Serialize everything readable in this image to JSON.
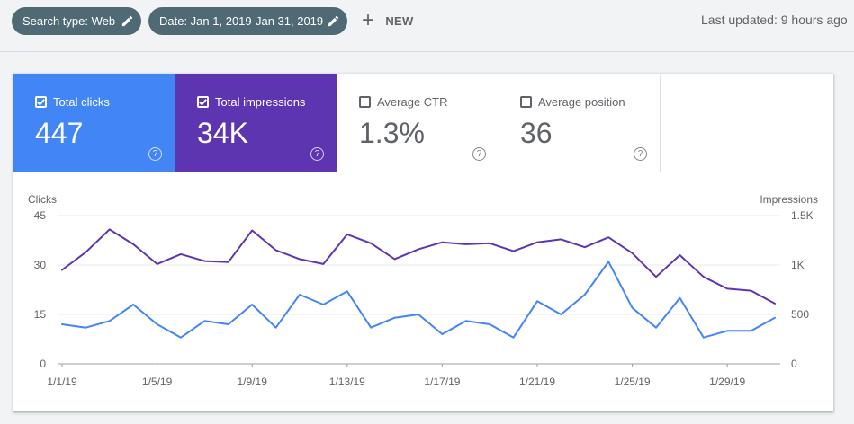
{
  "filters": {
    "search_type": "Search type: Web",
    "date": "Date: Jan 1, 2019-Jan 31, 2019",
    "new_label": "NEW",
    "new_icon": "plus-icon",
    "edit_icon": "pencil-icon"
  },
  "last_updated": "Last updated: 9 hours ago",
  "metrics": [
    {
      "label": "Total clicks",
      "value": "447",
      "checked": true,
      "color": "#4285f4"
    },
    {
      "label": "Total impressions",
      "value": "34K",
      "checked": true,
      "color": "#5e35b1"
    },
    {
      "label": "Average CTR",
      "value": "1.3%",
      "checked": false
    },
    {
      "label": "Average position",
      "value": "36",
      "checked": false
    }
  ],
  "help_glyph": "?",
  "chart_data": {
    "type": "line",
    "left_axis": {
      "label": "Clicks",
      "ticks": [
        "0",
        "15",
        "30",
        "45"
      ],
      "ylim": [
        0,
        45
      ]
    },
    "right_axis": {
      "label": "Impressions",
      "ticks": [
        "0",
        "500",
        "1K",
        "1.5K"
      ],
      "ylim": [
        0,
        1500
      ]
    },
    "x_ticks": [
      {
        "label": "1/1/19",
        "day": 1
      },
      {
        "label": "1/5/19",
        "day": 5
      },
      {
        "label": "1/9/19",
        "day": 9
      },
      {
        "label": "1/13/19",
        "day": 13
      },
      {
        "label": "1/17/19",
        "day": 17
      },
      {
        "label": "1/21/19",
        "day": 21
      },
      {
        "label": "1/25/19",
        "day": 25
      },
      {
        "label": "1/29/19",
        "day": 29
      }
    ],
    "days": [
      1,
      2,
      3,
      4,
      5,
      6,
      7,
      8,
      9,
      10,
      11,
      12,
      13,
      14,
      15,
      16,
      17,
      18,
      19,
      20,
      21,
      22,
      23,
      24,
      25,
      26,
      27,
      28,
      29,
      30,
      31
    ],
    "series": [
      {
        "name": "Clicks",
        "axis": "left",
        "color": "#4285f4",
        "values": [
          12,
          11,
          13,
          18,
          12,
          8,
          13,
          12,
          18,
          11,
          21,
          18,
          22,
          11,
          14,
          15,
          9,
          13,
          12,
          8,
          19,
          15,
          21,
          31,
          17,
          11,
          20,
          8,
          10,
          10,
          14
        ]
      },
      {
        "name": "Impressions",
        "axis": "right",
        "color": "#5e35b1",
        "values": [
          950,
          1130,
          1360,
          1210,
          1010,
          1110,
          1040,
          1030,
          1350,
          1150,
          1060,
          1010,
          1310,
          1220,
          1060,
          1160,
          1230,
          1210,
          1220,
          1140,
          1230,
          1260,
          1180,
          1280,
          1120,
          880,
          1100,
          880,
          760,
          740,
          610
        ]
      }
    ]
  }
}
